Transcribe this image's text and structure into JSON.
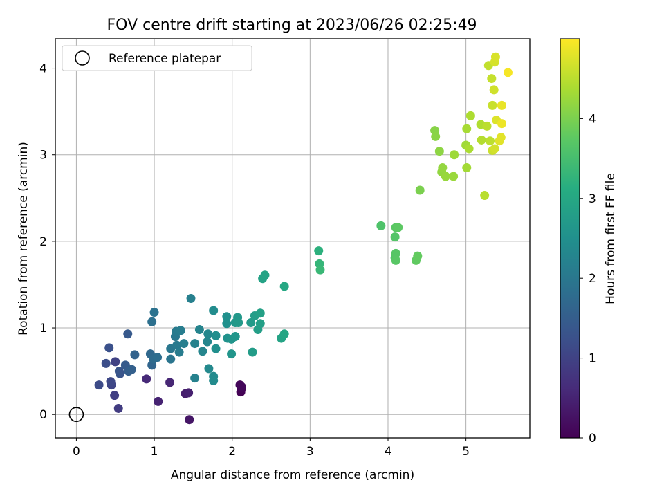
{
  "chart_data": {
    "type": "scatter",
    "title": "FOV centre drift starting at 2023/06/26 02:25:49",
    "xlabel": "Angular distance from reference (arcmin)",
    "ylabel": "Rotation from reference (arcmin)",
    "xlim": [
      -0.27,
      5.82
    ],
    "ylim": [
      -0.27,
      4.34
    ],
    "xticks": [
      0,
      1,
      2,
      3,
      4,
      5
    ],
    "yticks": [
      0,
      1,
      2,
      3,
      4
    ],
    "grid": true,
    "legend": {
      "position": "top-left",
      "entries": [
        "Reference platepar"
      ]
    },
    "reference_point": {
      "x": 0,
      "y": 0,
      "label": "Reference platepar"
    },
    "colorbar": {
      "label": "Hours from first FF file",
      "min": 0,
      "max": 5.0,
      "ticks": [
        0,
        1,
        2,
        3,
        4
      ],
      "colormap": "viridis"
    },
    "points": [
      {
        "x": 2.11,
        "y": 0.26,
        "c": 0.02
      },
      {
        "x": 2.12,
        "y": 0.3,
        "c": 0.05
      },
      {
        "x": 2.1,
        "y": 0.34,
        "c": 0.08
      },
      {
        "x": 2.12,
        "y": 0.32,
        "c": 0.1
      },
      {
        "x": 1.45,
        "y": -0.06,
        "c": 0.3
      },
      {
        "x": 1.4,
        "y": 0.24,
        "c": 0.4
      },
      {
        "x": 1.44,
        "y": 0.25,
        "c": 0.45
      },
      {
        "x": 1.05,
        "y": 0.15,
        "c": 0.5
      },
      {
        "x": 1.2,
        "y": 0.37,
        "c": 0.55
      },
      {
        "x": 0.9,
        "y": 0.41,
        "c": 0.6
      },
      {
        "x": 0.54,
        "y": 0.07,
        "c": 0.9
      },
      {
        "x": 0.49,
        "y": 0.22,
        "c": 0.95
      },
      {
        "x": 0.5,
        "y": 0.61,
        "c": 1.0
      },
      {
        "x": 0.45,
        "y": 0.34,
        "c": 1.05
      },
      {
        "x": 0.44,
        "y": 0.38,
        "c": 1.1
      },
      {
        "x": 0.29,
        "y": 0.34,
        "c": 1.15
      },
      {
        "x": 0.38,
        "y": 0.59,
        "c": 1.2
      },
      {
        "x": 0.42,
        "y": 0.77,
        "c": 1.25
      },
      {
        "x": 0.56,
        "y": 0.47,
        "c": 1.3
      },
      {
        "x": 0.55,
        "y": 0.5,
        "c": 1.35
      },
      {
        "x": 0.66,
        "y": 0.93,
        "c": 1.4
      },
      {
        "x": 0.63,
        "y": 0.57,
        "c": 1.45
      },
      {
        "x": 0.67,
        "y": 0.5,
        "c": 1.5
      },
      {
        "x": 0.71,
        "y": 0.52,
        "c": 1.55
      },
      {
        "x": 0.75,
        "y": 0.69,
        "c": 1.6
      },
      {
        "x": 0.97,
        "y": 0.57,
        "c": 1.65
      },
      {
        "x": 0.95,
        "y": 0.7,
        "c": 1.7
      },
      {
        "x": 0.99,
        "y": 0.64,
        "c": 1.75
      },
      {
        "x": 1.04,
        "y": 0.66,
        "c": 1.8
      },
      {
        "x": 0.97,
        "y": 1.07,
        "c": 1.85
      },
      {
        "x": 1.0,
        "y": 1.18,
        "c": 1.9
      },
      {
        "x": 1.21,
        "y": 0.64,
        "c": 1.95
      },
      {
        "x": 1.21,
        "y": 0.76,
        "c": 2.0
      },
      {
        "x": 1.27,
        "y": 0.9,
        "c": 2.02
      },
      {
        "x": 1.29,
        "y": 0.8,
        "c": 2.05
      },
      {
        "x": 1.28,
        "y": 0.96,
        "c": 2.08
      },
      {
        "x": 1.32,
        "y": 0.72,
        "c": 2.1
      },
      {
        "x": 1.34,
        "y": 0.97,
        "c": 2.12
      },
      {
        "x": 1.38,
        "y": 0.82,
        "c": 2.15
      },
      {
        "x": 1.47,
        "y": 1.34,
        "c": 2.18
      },
      {
        "x": 1.52,
        "y": 0.42,
        "c": 2.2
      },
      {
        "x": 1.52,
        "y": 0.82,
        "c": 2.22
      },
      {
        "x": 1.58,
        "y": 0.98,
        "c": 2.25
      },
      {
        "x": 1.62,
        "y": 0.73,
        "c": 2.28
      },
      {
        "x": 1.68,
        "y": 0.84,
        "c": 2.3
      },
      {
        "x": 1.69,
        "y": 0.93,
        "c": 2.32
      },
      {
        "x": 1.7,
        "y": 0.53,
        "c": 2.35
      },
      {
        "x": 1.76,
        "y": 0.44,
        "c": 2.38
      },
      {
        "x": 1.76,
        "y": 0.39,
        "c": 2.4
      },
      {
        "x": 1.76,
        "y": 1.2,
        "c": 2.42
      },
      {
        "x": 1.79,
        "y": 0.91,
        "c": 2.45
      },
      {
        "x": 1.79,
        "y": 0.76,
        "c": 2.48
      },
      {
        "x": 1.93,
        "y": 1.13,
        "c": 2.5
      },
      {
        "x": 1.93,
        "y": 1.05,
        "c": 2.52
      },
      {
        "x": 1.94,
        "y": 0.88,
        "c": 2.55
      },
      {
        "x": 1.99,
        "y": 0.87,
        "c": 2.58
      },
      {
        "x": 1.99,
        "y": 0.7,
        "c": 2.6
      },
      {
        "x": 2.04,
        "y": 0.9,
        "c": 2.62
      },
      {
        "x": 2.04,
        "y": 1.06,
        "c": 2.65
      },
      {
        "x": 2.07,
        "y": 1.12,
        "c": 2.68
      },
      {
        "x": 2.08,
        "y": 1.06,
        "c": 2.7
      },
      {
        "x": 2.24,
        "y": 1.06,
        "c": 2.72
      },
      {
        "x": 2.26,
        "y": 0.72,
        "c": 2.75
      },
      {
        "x": 2.29,
        "y": 1.14,
        "c": 2.78
      },
      {
        "x": 2.33,
        "y": 0.98,
        "c": 2.8
      },
      {
        "x": 2.36,
        "y": 1.05,
        "c": 2.82
      },
      {
        "x": 2.36,
        "y": 1.17,
        "c": 2.85
      },
      {
        "x": 2.39,
        "y": 1.57,
        "c": 2.88
      },
      {
        "x": 2.42,
        "y": 1.61,
        "c": 2.9
      },
      {
        "x": 2.63,
        "y": 0.88,
        "c": 2.92
      },
      {
        "x": 2.67,
        "y": 0.93,
        "c": 2.95
      },
      {
        "x": 2.67,
        "y": 1.48,
        "c": 3.0
      },
      {
        "x": 3.11,
        "y": 1.89,
        "c": 3.2
      },
      {
        "x": 3.12,
        "y": 1.74,
        "c": 3.3
      },
      {
        "x": 3.13,
        "y": 1.67,
        "c": 3.35
      },
      {
        "x": 3.91,
        "y": 2.18,
        "c": 3.6
      },
      {
        "x": 4.09,
        "y": 1.81,
        "c": 3.62
      },
      {
        "x": 4.09,
        "y": 2.05,
        "c": 3.65
      },
      {
        "x": 4.1,
        "y": 1.86,
        "c": 3.68
      },
      {
        "x": 4.1,
        "y": 1.78,
        "c": 3.7
      },
      {
        "x": 4.1,
        "y": 2.16,
        "c": 3.72
      },
      {
        "x": 4.13,
        "y": 2.16,
        "c": 3.75
      },
      {
        "x": 4.36,
        "y": 1.78,
        "c": 3.78
      },
      {
        "x": 4.38,
        "y": 1.83,
        "c": 3.8
      },
      {
        "x": 4.41,
        "y": 2.59,
        "c": 4.0
      },
      {
        "x": 4.6,
        "y": 3.28,
        "c": 4.1
      },
      {
        "x": 4.61,
        "y": 3.21,
        "c": 4.12
      },
      {
        "x": 4.66,
        "y": 3.04,
        "c": 4.15
      },
      {
        "x": 4.69,
        "y": 2.8,
        "c": 4.18
      },
      {
        "x": 4.7,
        "y": 2.85,
        "c": 4.2
      },
      {
        "x": 4.74,
        "y": 2.75,
        "c": 4.22
      },
      {
        "x": 4.84,
        "y": 2.75,
        "c": 4.25
      },
      {
        "x": 4.85,
        "y": 3.0,
        "c": 4.28
      },
      {
        "x": 5.0,
        "y": 3.11,
        "c": 4.3
      },
      {
        "x": 5.01,
        "y": 2.85,
        "c": 4.32
      },
      {
        "x": 5.01,
        "y": 3.3,
        "c": 4.35
      },
      {
        "x": 5.04,
        "y": 3.07,
        "c": 4.38
      },
      {
        "x": 5.06,
        "y": 3.45,
        "c": 4.4
      },
      {
        "x": 5.19,
        "y": 3.35,
        "c": 4.42
      },
      {
        "x": 5.2,
        "y": 3.17,
        "c": 4.45
      },
      {
        "x": 5.24,
        "y": 2.53,
        "c": 4.48
      },
      {
        "x": 5.27,
        "y": 3.33,
        "c": 4.5
      },
      {
        "x": 5.31,
        "y": 3.16,
        "c": 4.52
      },
      {
        "x": 5.29,
        "y": 4.03,
        "c": 4.55
      },
      {
        "x": 5.33,
        "y": 3.88,
        "c": 4.58
      },
      {
        "x": 5.34,
        "y": 3.57,
        "c": 4.6
      },
      {
        "x": 5.34,
        "y": 3.05,
        "c": 4.62
      },
      {
        "x": 5.36,
        "y": 3.75,
        "c": 4.65
      },
      {
        "x": 5.37,
        "y": 3.07,
        "c": 4.68
      },
      {
        "x": 5.37,
        "y": 4.07,
        "c": 4.7
      },
      {
        "x": 5.38,
        "y": 4.13,
        "c": 4.72
      },
      {
        "x": 5.39,
        "y": 3.4,
        "c": 4.75
      },
      {
        "x": 5.43,
        "y": 3.16,
        "c": 4.78
      },
      {
        "x": 5.45,
        "y": 3.2,
        "c": 4.8
      },
      {
        "x": 5.46,
        "y": 3.57,
        "c": 4.85
      },
      {
        "x": 5.46,
        "y": 3.36,
        "c": 4.88
      },
      {
        "x": 5.54,
        "y": 3.95,
        "c": 4.95
      }
    ]
  }
}
